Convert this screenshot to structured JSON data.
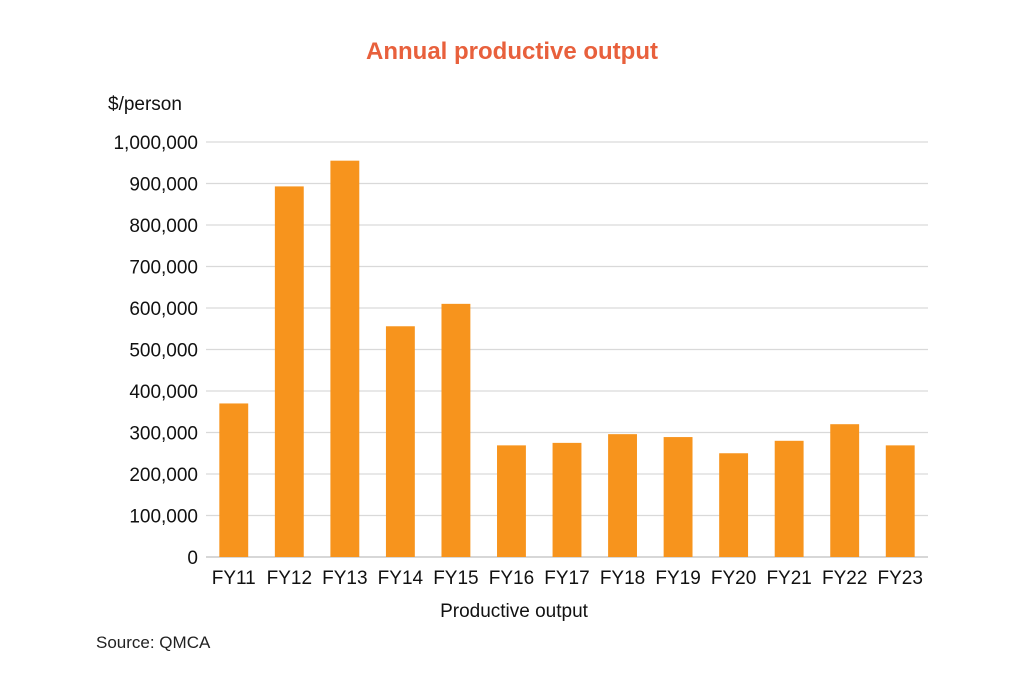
{
  "chart_data": {
    "type": "bar",
    "title": "Annual productive output",
    "ylabel": "$/person",
    "xlabel": "Productive output",
    "categories": [
      "FY11",
      "FY12",
      "FY13",
      "FY14",
      "FY15",
      "FY16",
      "FY17",
      "FY18",
      "FY19",
      "FY20",
      "FY21",
      "FY22",
      "FY23"
    ],
    "values": [
      370000,
      893000,
      955000,
      556000,
      610000,
      269000,
      275000,
      296000,
      289000,
      250000,
      280000,
      320000,
      269000
    ],
    "ylim": [
      0,
      1000000
    ],
    "yticks": [
      0,
      100000,
      200000,
      300000,
      400000,
      500000,
      600000,
      700000,
      800000,
      900000,
      1000000
    ],
    "ytick_labels": [
      "0",
      "100,000",
      "200,000",
      "300,000",
      "400,000",
      "500,000",
      "600,000",
      "700,000",
      "800,000",
      "900,000",
      "1,000,000"
    ],
    "grid": true,
    "legend": "none",
    "bar_color": "#f7941d",
    "gridline_color": "#d9d9d9",
    "title_color": "#e8603c"
  },
  "footer": {
    "source": "Source: QMCA"
  }
}
